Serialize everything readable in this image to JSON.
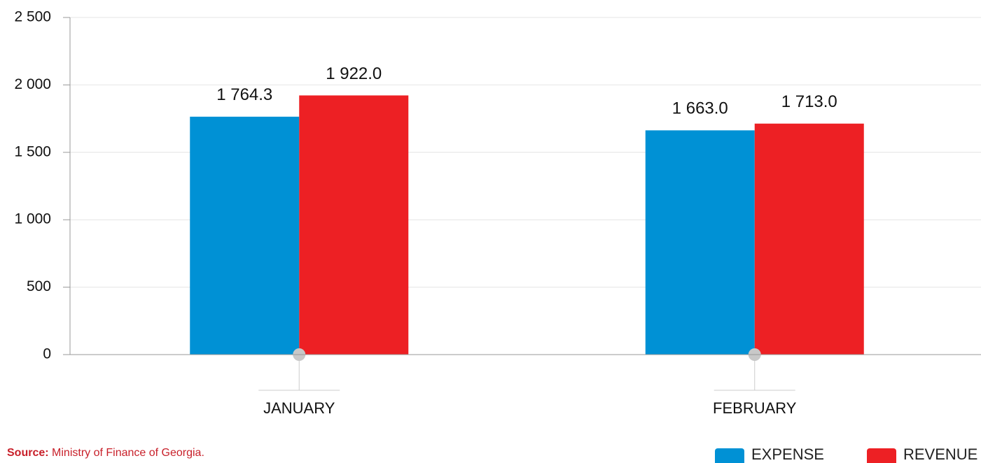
{
  "chart_data": {
    "type": "bar",
    "categories": [
      "JANUARY",
      "FEBRUARY"
    ],
    "series": [
      {
        "name": "EXPENSE",
        "color": "#0091d5",
        "values": [
          1764.3,
          1663.0
        ],
        "value_labels": [
          "1 764.3",
          "1 663.0"
        ]
      },
      {
        "name": "REVENUE",
        "color": "#ed2024",
        "values": [
          1922.0,
          1713.0
        ],
        "value_labels": [
          "1 922.0",
          "1 713.0"
        ]
      }
    ],
    "ylim": [
      0,
      2500
    ],
    "yticks": [
      0,
      500,
      {
        "value": 1000,
        "label": "1 000"
      },
      {
        "value": 1500,
        "label": "1 500"
      },
      {
        "value": 2000,
        "label": "2 000"
      },
      {
        "value": 2500,
        "label": "2 500"
      }
    ],
    "grid": true,
    "legend": "bottom-right",
    "source_label": "Source:",
    "source": "Ministry of Finance of Georgia."
  }
}
